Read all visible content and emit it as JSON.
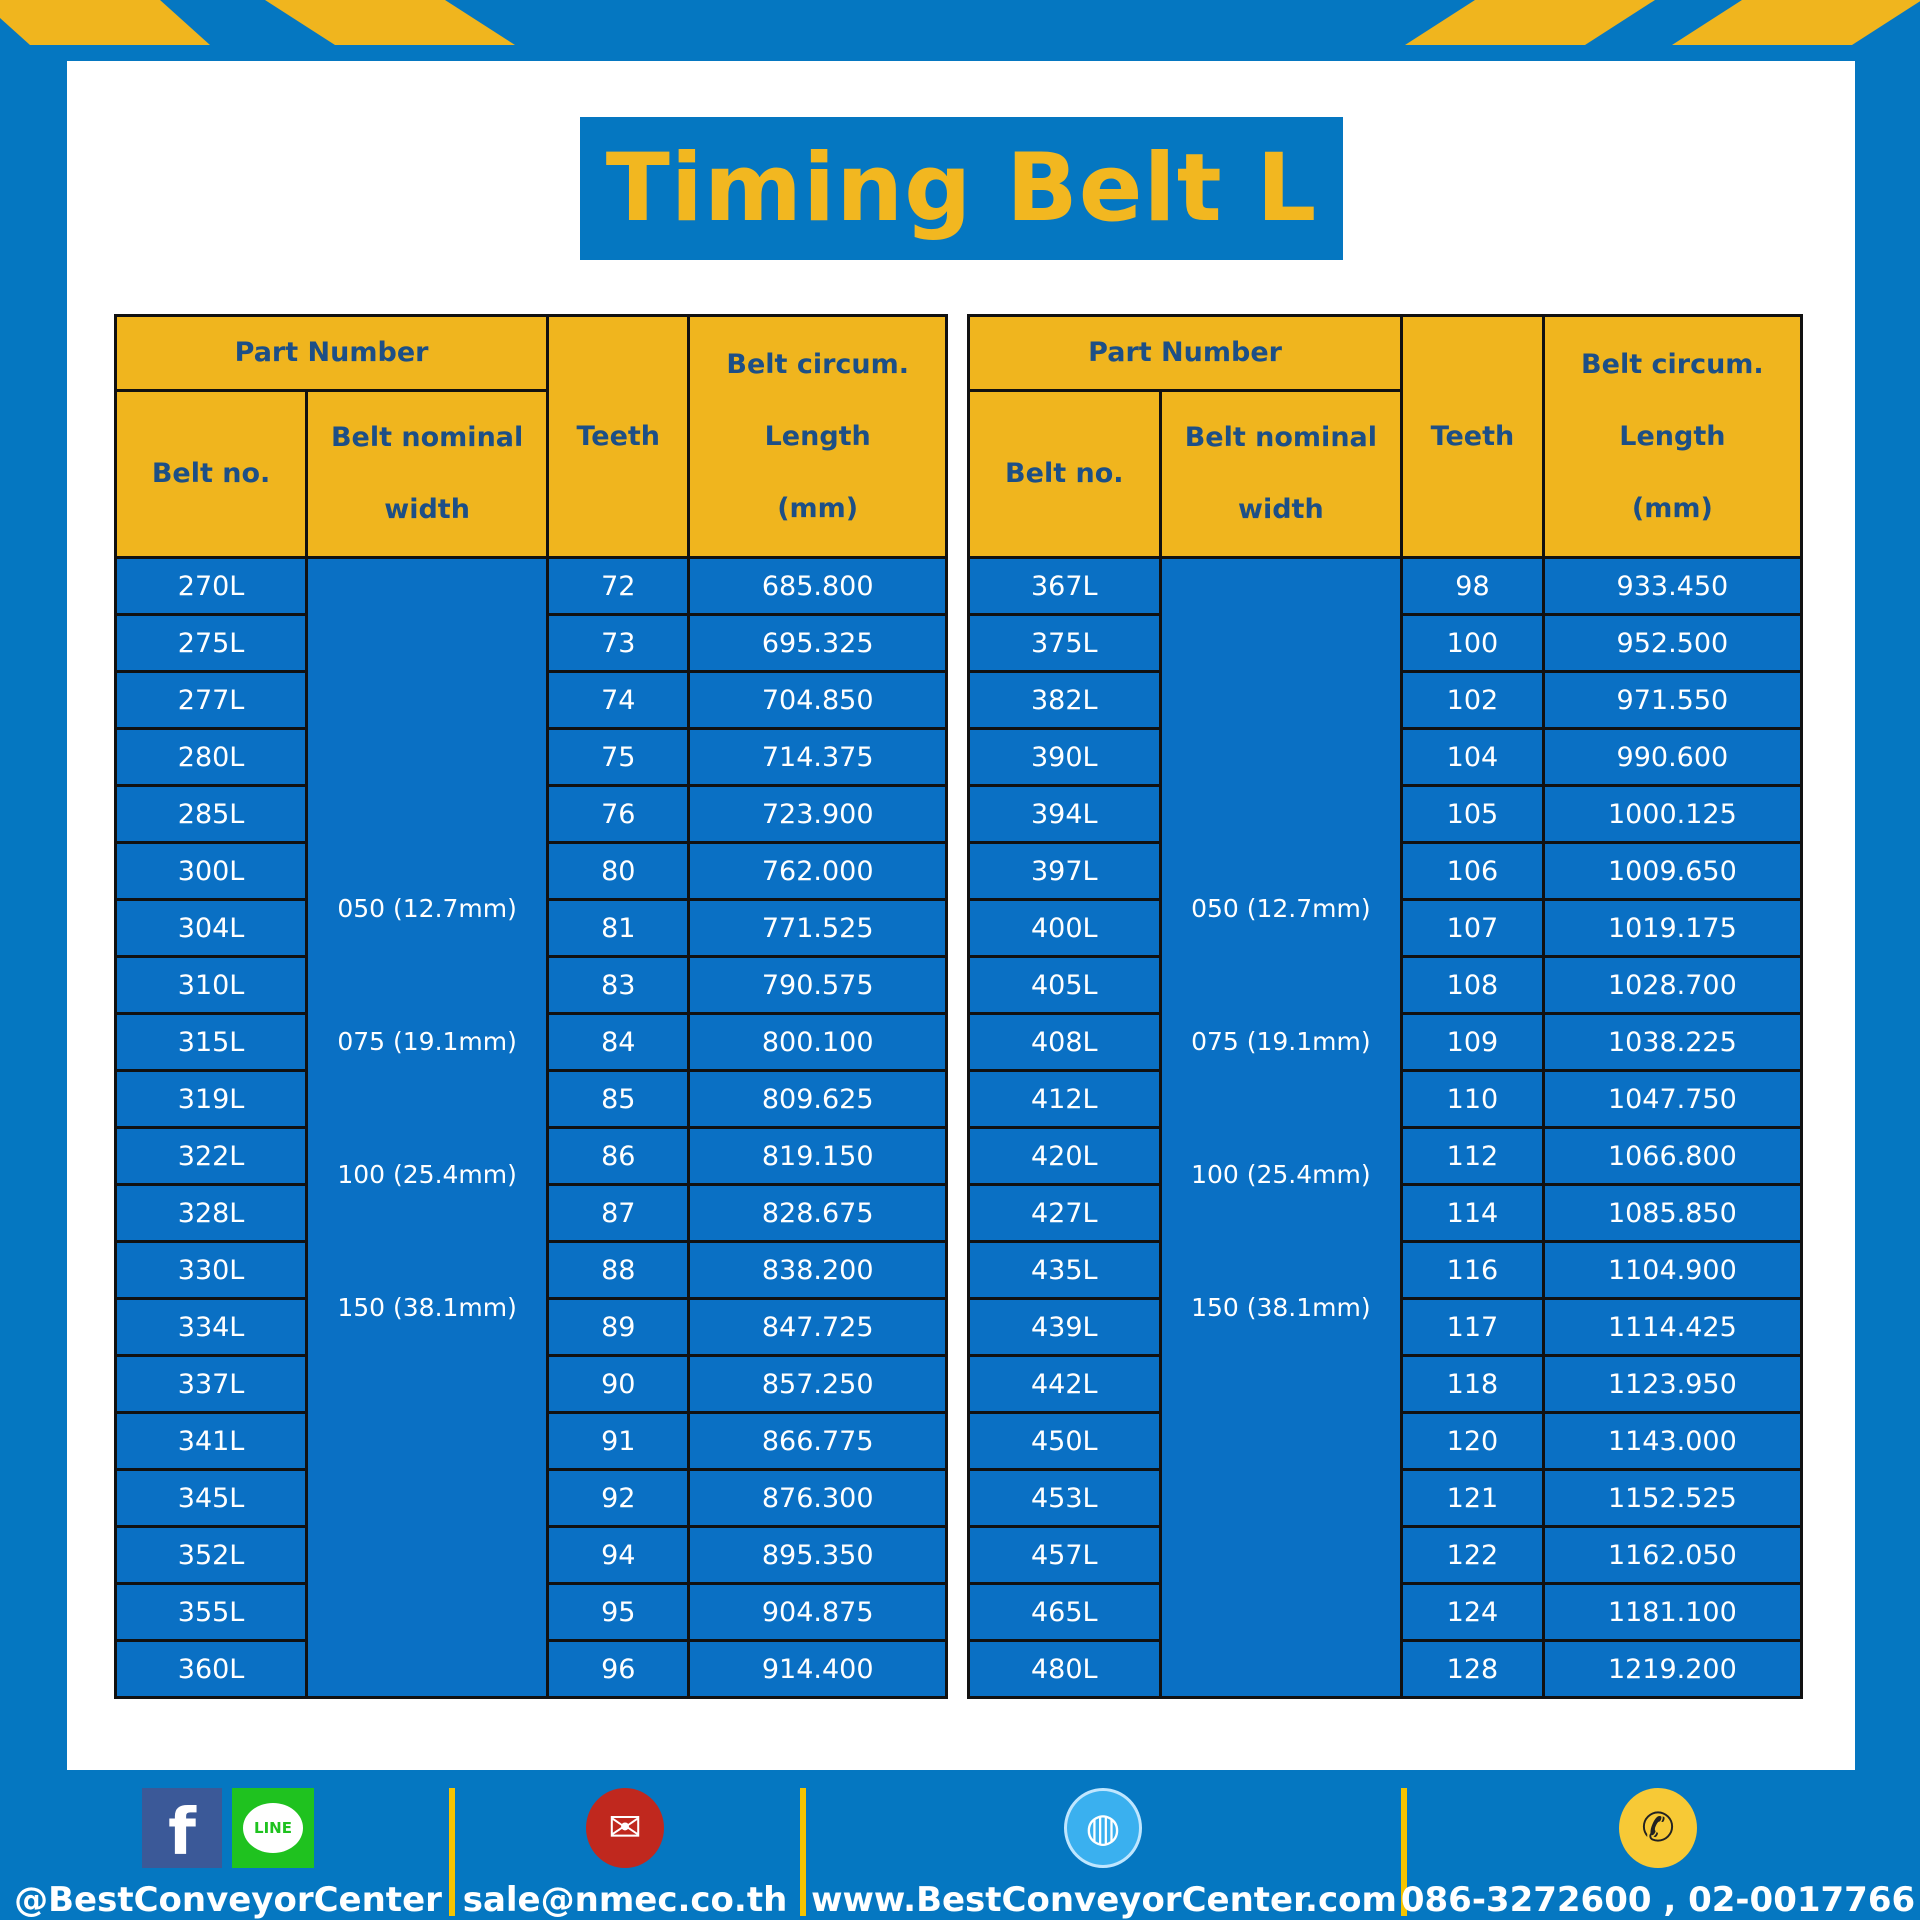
{
  "title": "Timing Belt L",
  "headers": {
    "part_number": "Part Number",
    "belt_no": "Belt no.",
    "belt_width_1": "Belt nominal",
    "belt_width_2": "width",
    "teeth": "Teeth",
    "circ_1": "Belt circum.",
    "circ_2": "Length",
    "circ_3": "(mm)"
  },
  "widths": [
    "050 (12.7mm)",
    "075 (19.1mm)",
    "100 (25.4mm)",
    "150 (38.1mm)"
  ],
  "left_rows": [
    [
      "270L",
      "72",
      "685.800"
    ],
    [
      "275L",
      "73",
      "695.325"
    ],
    [
      "277L",
      "74",
      "704.850"
    ],
    [
      "280L",
      "75",
      "714.375"
    ],
    [
      "285L",
      "76",
      "723.900"
    ],
    [
      "300L",
      "80",
      "762.000"
    ],
    [
      "304L",
      "81",
      "771.525"
    ],
    [
      "310L",
      "83",
      "790.575"
    ],
    [
      "315L",
      "84",
      "800.100"
    ],
    [
      "319L",
      "85",
      "809.625"
    ],
    [
      "322L",
      "86",
      "819.150"
    ],
    [
      "328L",
      "87",
      "828.675"
    ],
    [
      "330L",
      "88",
      "838.200"
    ],
    [
      "334L",
      "89",
      "847.725"
    ],
    [
      "337L",
      "90",
      "857.250"
    ],
    [
      "341L",
      "91",
      "866.775"
    ],
    [
      "345L",
      "92",
      "876.300"
    ],
    [
      "352L",
      "94",
      "895.350"
    ],
    [
      "355L",
      "95",
      "904.875"
    ],
    [
      "360L",
      "96",
      "914.400"
    ]
  ],
  "right_rows": [
    [
      "367L",
      "98",
      "933.450"
    ],
    [
      "375L",
      "100",
      "952.500"
    ],
    [
      "382L",
      "102",
      "971.550"
    ],
    [
      "390L",
      "104",
      "990.600"
    ],
    [
      "394L",
      "105",
      "1000.125"
    ],
    [
      "397L",
      "106",
      "1009.650"
    ],
    [
      "400L",
      "107",
      "1019.175"
    ],
    [
      "405L",
      "108",
      "1028.700"
    ],
    [
      "408L",
      "109",
      "1038.225"
    ],
    [
      "412L",
      "110",
      "1047.750"
    ],
    [
      "420L",
      "112",
      "1066.800"
    ],
    [
      "427L",
      "114",
      "1085.850"
    ],
    [
      "435L",
      "116",
      "1104.900"
    ],
    [
      "439L",
      "117",
      "1114.425"
    ],
    [
      "442L",
      "118",
      "1123.950"
    ],
    [
      "450L",
      "120",
      "1143.000"
    ],
    [
      "453L",
      "121",
      "1152.525"
    ],
    [
      "457L",
      "122",
      "1162.050"
    ],
    [
      "465L",
      "124",
      "1181.100"
    ],
    [
      "480L",
      "128",
      "1219.200"
    ]
  ],
  "footer": {
    "social": "@BestConveyorCenter",
    "email": "sale@nmec.co.th",
    "website": "www.BestConveyorCenter.com",
    "phone": "086-3272600 , 02-0017766",
    "line_logo": "LINE"
  },
  "colors": {
    "blue": "#0577c1",
    "yellow": "#f0b51e",
    "cell": "#0a70c4"
  }
}
